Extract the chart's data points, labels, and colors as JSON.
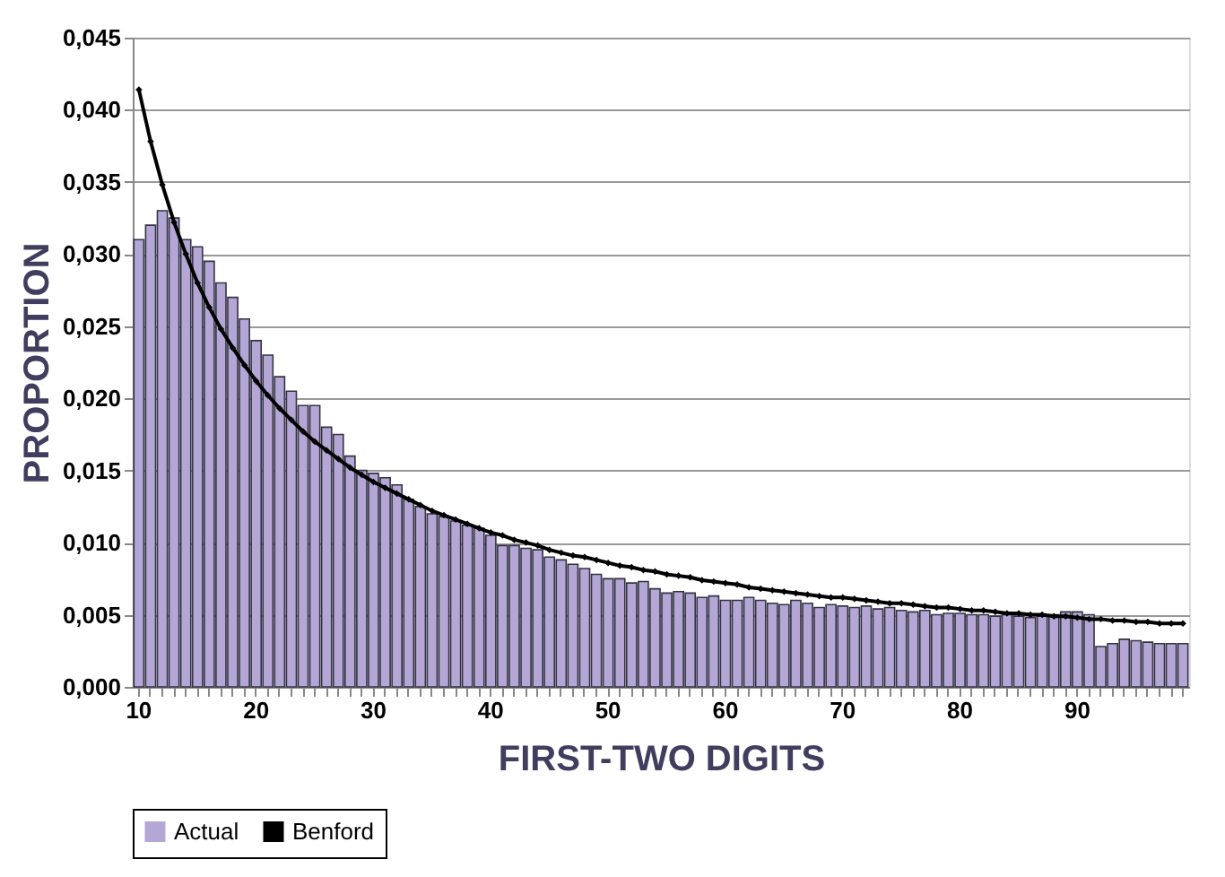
{
  "chart_data": {
    "type": "bar",
    "xlabel": "FIRST-TWO DIGITS",
    "ylabel": "PROPORTION",
    "categories": [
      "10",
      null,
      null,
      null,
      null,
      null,
      null,
      null,
      null,
      null,
      "20",
      null,
      null,
      null,
      null,
      null,
      null,
      null,
      null,
      null,
      "30",
      null,
      null,
      null,
      null,
      null,
      null,
      null,
      null,
      null,
      "40",
      null,
      null,
      null,
      null,
      null,
      null,
      null,
      null,
      null,
      "50",
      null,
      null,
      null,
      null,
      null,
      null,
      null,
      null,
      null,
      "60",
      null,
      null,
      null,
      null,
      null,
      null,
      null,
      null,
      null,
      "70",
      null,
      null,
      null,
      null,
      null,
      null,
      null,
      null,
      null,
      "80",
      null,
      null,
      null,
      null,
      null,
      null,
      null,
      null,
      null,
      "90",
      null,
      null,
      null,
      null,
      null,
      null,
      null,
      null,
      null
    ],
    "series": [
      {
        "name": "Actual",
        "color": "#b4a7d6",
        "values": [
          0.031,
          0.032,
          0.033,
          0.0325,
          0.031,
          0.0305,
          0.0295,
          0.028,
          0.027,
          0.0255,
          0.024,
          0.023,
          0.0215,
          0.0205,
          0.0195,
          0.0195,
          0.018,
          0.0175,
          0.016,
          0.015,
          0.0148,
          0.0145,
          0.014,
          0.013,
          0.0125,
          0.012,
          0.0118,
          0.0115,
          0.0112,
          0.011,
          0.0105,
          0.0098,
          0.0098,
          0.0096,
          0.0095,
          0.009,
          0.0088,
          0.0085,
          0.0082,
          0.0078,
          0.0075,
          0.0075,
          0.0072,
          0.0073,
          0.0068,
          0.0065,
          0.0066,
          0.0065,
          0.0062,
          0.0063,
          0.006,
          0.006,
          0.0062,
          0.006,
          0.0058,
          0.0057,
          0.006,
          0.0058,
          0.0055,
          0.0057,
          0.0056,
          0.0055,
          0.0056,
          0.0054,
          0.0055,
          0.0053,
          0.0052,
          0.0053,
          0.005,
          0.0051,
          0.0051,
          0.005,
          0.005,
          0.0049,
          0.005,
          0.0049,
          0.0048,
          0.0049,
          0.005,
          0.0052,
          0.0052,
          0.005,
          0.0028,
          0.003,
          0.0033,
          0.0032,
          0.0031,
          0.003,
          0.003,
          0.003
        ]
      },
      {
        "name": "Benford",
        "type": "line",
        "color": "#000000",
        "marker": "diamond",
        "line_style": "solid",
        "values": [
          0.0414,
          0.0378,
          0.0348,
          0.0322,
          0.03,
          0.028,
          0.0263,
          0.0248,
          0.0235,
          0.0223,
          0.0212,
          0.0202,
          0.0193,
          0.0185,
          0.0177,
          0.017,
          0.0164,
          0.0158,
          0.0152,
          0.0147,
          0.0142,
          0.0138,
          0.0134,
          0.013,
          0.0126,
          0.0122,
          0.0119,
          0.0116,
          0.0113,
          0.011,
          0.0107,
          0.0105,
          0.0102,
          0.01,
          0.0098,
          0.0095,
          0.0093,
          0.0091,
          0.009,
          0.0088,
          0.0086,
          0.0084,
          0.0083,
          0.0081,
          0.008,
          0.0078,
          0.0077,
          0.0076,
          0.0074,
          0.0073,
          0.0072,
          0.0071,
          0.0069,
          0.0068,
          0.0067,
          0.0066,
          0.0065,
          0.0064,
          0.0063,
          0.0062,
          0.0062,
          0.0061,
          0.006,
          0.0059,
          0.0058,
          0.0058,
          0.0057,
          0.0056,
          0.0055,
          0.0055,
          0.0054,
          0.0053,
          0.0053,
          0.0052,
          0.0051,
          0.0051,
          0.005,
          0.005,
          0.0049,
          0.0049,
          0.0048,
          0.0047,
          0.0047,
          0.0046,
          0.0046,
          0.0045,
          0.0045,
          0.0044,
          0.0044,
          0.0044
        ]
      }
    ],
    "ylim": [
      0,
      0.045
    ],
    "yticks": [
      {
        "value": 0,
        "label": "0,000"
      },
      {
        "value": 0.005,
        "label": "0,005"
      },
      {
        "value": 0.01,
        "label": "0,010"
      },
      {
        "value": 0.015,
        "label": "0,015"
      },
      {
        "value": 0.02,
        "label": "0,020"
      },
      {
        "value": 0.025,
        "label": "0,025"
      },
      {
        "value": 0.03,
        "label": "0,030"
      },
      {
        "value": 0.035,
        "label": "0,035"
      },
      {
        "value": 0.04,
        "label": "0,040"
      },
      {
        "value": 0.045,
        "label": "0,045"
      }
    ],
    "grid": "y",
    "legend": "bottom"
  }
}
